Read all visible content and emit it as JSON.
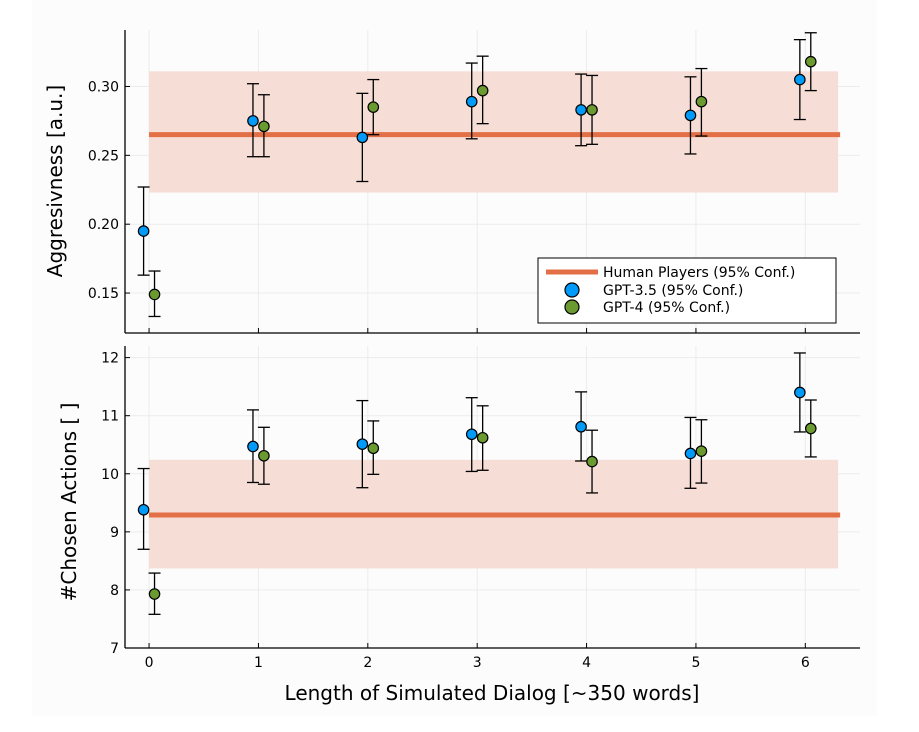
{
  "colors": {
    "human": "#e26f46",
    "human_band": "#f6ddd5",
    "gpt35": "#009af9",
    "gpt4": "#6a9a30",
    "panel_bg": "#fcfcfc",
    "grid": "#ececec"
  },
  "chart_data": [
    {
      "type": "scatter",
      "title": "",
      "xlabel": "",
      "ylabel": "Aggresivness [a.u.]",
      "xlim": [
        -0.22,
        6.5
      ],
      "ylim": [
        0.121,
        0.341
      ],
      "yticks": [
        0.15,
        0.2,
        0.25,
        0.3
      ],
      "ytick_labels": [
        "0.15",
        "0.20",
        "0.25",
        "0.30"
      ],
      "xticks": [
        0,
        1,
        2,
        3,
        4,
        5,
        6
      ],
      "show_xtick_labels": false,
      "human_reference": {
        "value": 0.265,
        "lower": 0.223,
        "upper": 0.311,
        "x_range": [
          0,
          6.3
        ]
      },
      "legend": {
        "position": "bottom-right",
        "entries": [
          "Human Players (95% Conf.)",
          "GPT-3.5 (95% Conf.)",
          "GPT-4 (95% Conf.)"
        ]
      },
      "series": [
        {
          "name": "GPT-3.5 (95% Conf.)",
          "x_offset": -0.05,
          "x": [
            0,
            1,
            2,
            3,
            4,
            5,
            6
          ],
          "y": [
            0.195,
            0.275,
            0.263,
            0.289,
            0.283,
            0.279,
            0.305
          ],
          "lower": [
            0.163,
            0.249,
            0.231,
            0.262,
            0.257,
            0.251,
            0.276
          ],
          "upper": [
            0.227,
            0.302,
            0.295,
            0.317,
            0.309,
            0.307,
            0.334
          ]
        },
        {
          "name": "GPT-4 (95% Conf.)",
          "x_offset": 0.05,
          "x": [
            0,
            1,
            2,
            3,
            4,
            5,
            6
          ],
          "y": [
            0.149,
            0.271,
            0.285,
            0.297,
            0.283,
            0.289,
            0.318
          ],
          "lower": [
            0.133,
            0.249,
            0.265,
            0.273,
            0.258,
            0.264,
            0.297
          ],
          "upper": [
            0.166,
            0.294,
            0.305,
            0.322,
            0.308,
            0.313,
            0.339
          ]
        }
      ]
    },
    {
      "type": "scatter",
      "title": "",
      "xlabel": "Length of Simulated Dialog [~350 words]",
      "ylabel": "#Chosen Actions [ ]",
      "xlim": [
        -0.22,
        6.5
      ],
      "ylim": [
        7.0,
        12.2
      ],
      "yticks": [
        7,
        8,
        9,
        10,
        11,
        12
      ],
      "ytick_labels": [
        "7",
        "8",
        "9",
        "10",
        "11",
        "12"
      ],
      "xticks": [
        0,
        1,
        2,
        3,
        4,
        5,
        6
      ],
      "xtick_labels": [
        "0",
        "1",
        "2",
        "3",
        "4",
        "5",
        "6"
      ],
      "show_xtick_labels": true,
      "human_reference": {
        "value": 9.29,
        "lower": 8.37,
        "upper": 10.24,
        "x_range": [
          0,
          6.3
        ]
      },
      "series": [
        {
          "name": "GPT-3.5 (95% Conf.)",
          "x_offset": -0.05,
          "x": [
            0,
            1,
            2,
            3,
            4,
            5,
            6
          ],
          "y": [
            9.38,
            10.47,
            10.51,
            10.68,
            10.81,
            10.35,
            11.4
          ],
          "lower": [
            8.7,
            9.85,
            9.76,
            10.04,
            10.22,
            9.75,
            10.72
          ],
          "upper": [
            10.09,
            11.1,
            11.26,
            11.31,
            11.41,
            10.97,
            12.08
          ]
        },
        {
          "name": "GPT-4 (95% Conf.)",
          "x_offset": 0.05,
          "x": [
            0,
            1,
            2,
            3,
            4,
            5,
            6
          ],
          "y": [
            7.93,
            10.31,
            10.44,
            10.62,
            10.21,
            10.39,
            10.78
          ],
          "lower": [
            7.58,
            9.82,
            9.99,
            10.06,
            9.67,
            9.84,
            10.29
          ],
          "upper": [
            8.29,
            10.8,
            10.91,
            11.17,
            10.75,
            10.93,
            11.27
          ]
        }
      ]
    }
  ]
}
